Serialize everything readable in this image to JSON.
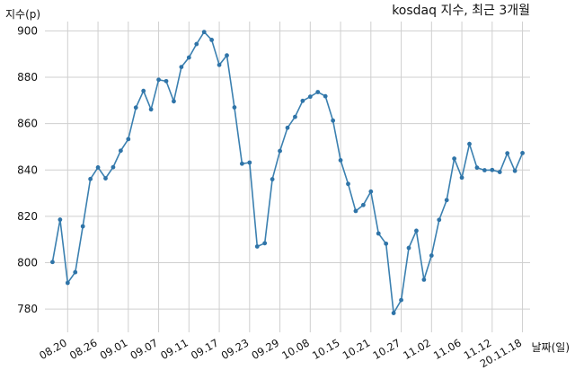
{
  "chart_data": {
    "type": "line",
    "title": "kosdaq 지수, 최근 3개월",
    "ylabel": "지수(p)",
    "xlabel": "날짜(일)",
    "ylim": [
      770,
      904
    ],
    "yticks": [
      780,
      800,
      820,
      840,
      860,
      880,
      900
    ],
    "grid": true,
    "x_tick_labels": [
      "08.20",
      "08.26",
      "09.01",
      "09.07",
      "09.11",
      "09.17",
      "09.23",
      "09.29",
      "10.08",
      "10.15",
      "10.21",
      "10.27",
      "11.02",
      "11.06",
      "11.12",
      "20.11.18"
    ],
    "x_tick_positions": [
      2,
      6,
      10,
      14,
      18,
      22,
      26,
      30,
      34,
      38,
      42,
      46,
      50,
      54,
      58,
      62
    ],
    "series": [
      {
        "color": "#3b80b0",
        "values": [
          800.3,
          818.6,
          791.3,
          795.9,
          815.7,
          836.1,
          841.1,
          836.4,
          841.2,
          848.3,
          853.3,
          866.9,
          874.1,
          866.1,
          878.9,
          878.3,
          869.6,
          884.4,
          888.5,
          894.3,
          899.5,
          896.1,
          885.3,
          889.4,
          867.0,
          842.7,
          843.2,
          807.0,
          808.4,
          836.0,
          848.2,
          858.2,
          862.9,
          869.8,
          871.6,
          873.6,
          871.8,
          861.3,
          844.2,
          834.0,
          822.3,
          824.9,
          830.7,
          812.6,
          808.2,
          778.3,
          783.9,
          806.4,
          813.8,
          792.7,
          803.1,
          818.5,
          827.0,
          844.9,
          836.7,
          851.2,
          841.0,
          839.9,
          840.0,
          839.1,
          847.2,
          839.6,
          847.3
        ]
      }
    ]
  }
}
